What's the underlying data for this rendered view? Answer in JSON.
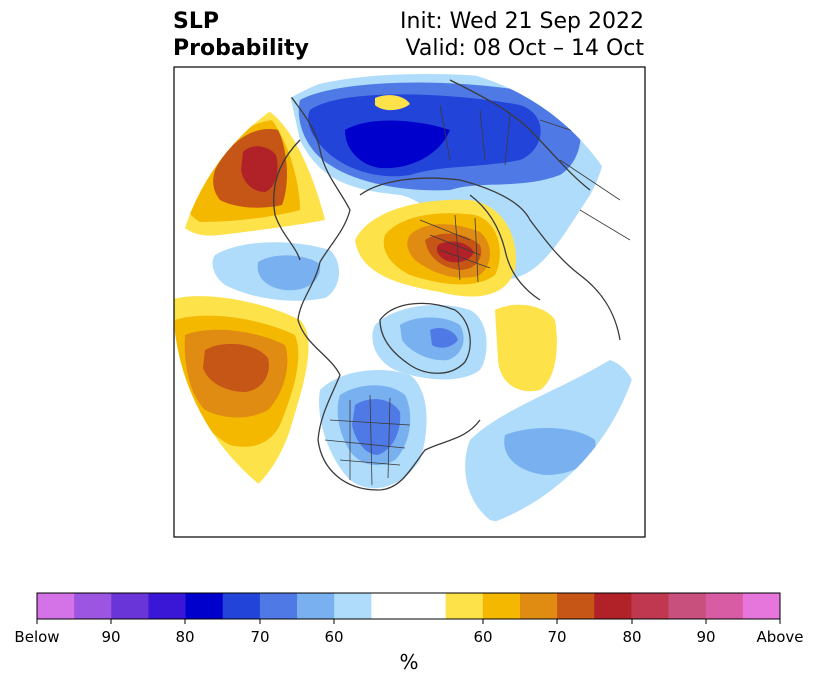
{
  "title": {
    "left_line1": "SLP",
    "left_line2": "Probability",
    "right_line1": "Init: Wed 21 Sep 2022",
    "right_line2": "Valid: 08 Oct – 14 Oct"
  },
  "colorbar": {
    "colors": [
      "#d472e8",
      "#9b55e0",
      "#6a35d8",
      "#3a17d6",
      "#0000cc",
      "#2344d8",
      "#4f7ae6",
      "#78b0f0",
      "#aedcfa",
      "#ffffff",
      "#ffffff",
      "#fde24a",
      "#f5b800",
      "#e08c12",
      "#c65616",
      "#b02228",
      "#c03850",
      "#c8507c",
      "#d75ca4",
      "#e676dc"
    ],
    "tick_labels": [
      "Below",
      "90",
      "80",
      "70",
      "60",
      "60",
      "70",
      "80",
      "90",
      "Above"
    ],
    "unit": "%"
  },
  "map_colors": {
    "blue_light": "#aedcfa",
    "blue_mid": "#78b0f0",
    "blue": "#4f7ae6",
    "blue_dark": "#2344d8",
    "blue_deep": "#0000cc",
    "yellow": "#fde24a",
    "gold": "#f5b800",
    "orange": "#e08c12",
    "rust": "#c65616",
    "red": "#b02228"
  }
}
